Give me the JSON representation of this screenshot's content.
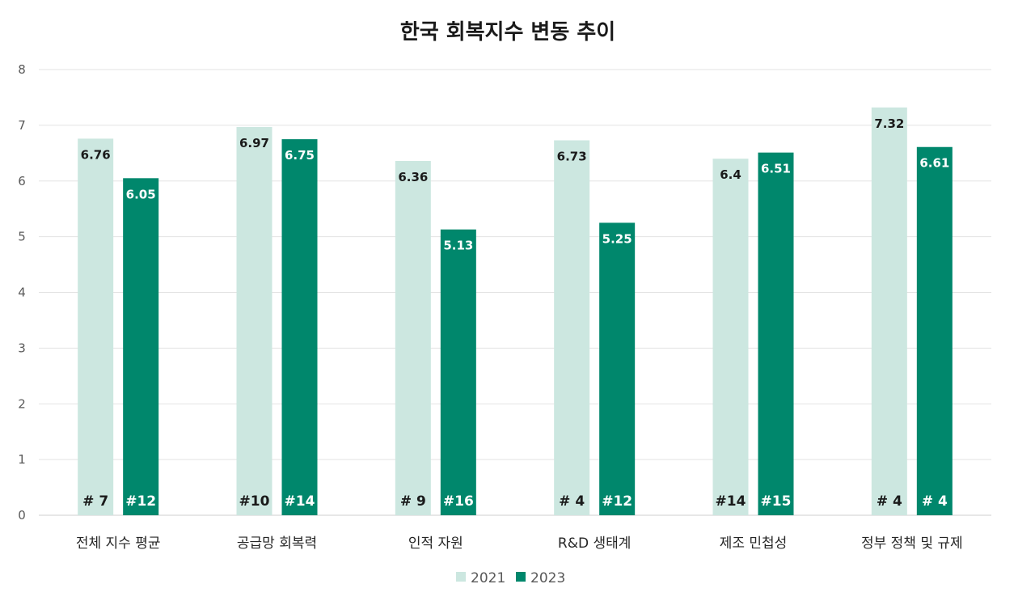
{
  "chart_data": {
    "type": "bar",
    "title": "한국 회복지수 변동 추이",
    "xlabel": "",
    "ylabel": "",
    "ylim": [
      0,
      8
    ],
    "yticks": [
      0,
      1,
      2,
      3,
      4,
      5,
      6,
      7,
      8
    ],
    "grid": true,
    "legend_position": "bottom",
    "categories": [
      "전체 지수 평균",
      "공급망 회복력",
      "인적 자원",
      "R&D 생태계",
      "제조 민첩성",
      "정부 정책 및 규제"
    ],
    "series": [
      {
        "name": "2021",
        "color": "#cce7e0",
        "label_color": "#1a1a1a",
        "values": [
          6.76,
          6.97,
          6.36,
          6.73,
          6.4,
          7.32
        ],
        "ranks": [
          "# 7",
          "#10",
          "# 9",
          "# 4",
          "#14",
          "# 4"
        ]
      },
      {
        "name": "2023",
        "color": "#00876c",
        "label_color": "#ffffff",
        "values": [
          6.05,
          6.75,
          5.13,
          5.25,
          6.51,
          6.61
        ],
        "ranks": [
          "#12",
          "#14",
          "#16",
          "#12",
          "#15",
          "# 4"
        ]
      }
    ]
  }
}
